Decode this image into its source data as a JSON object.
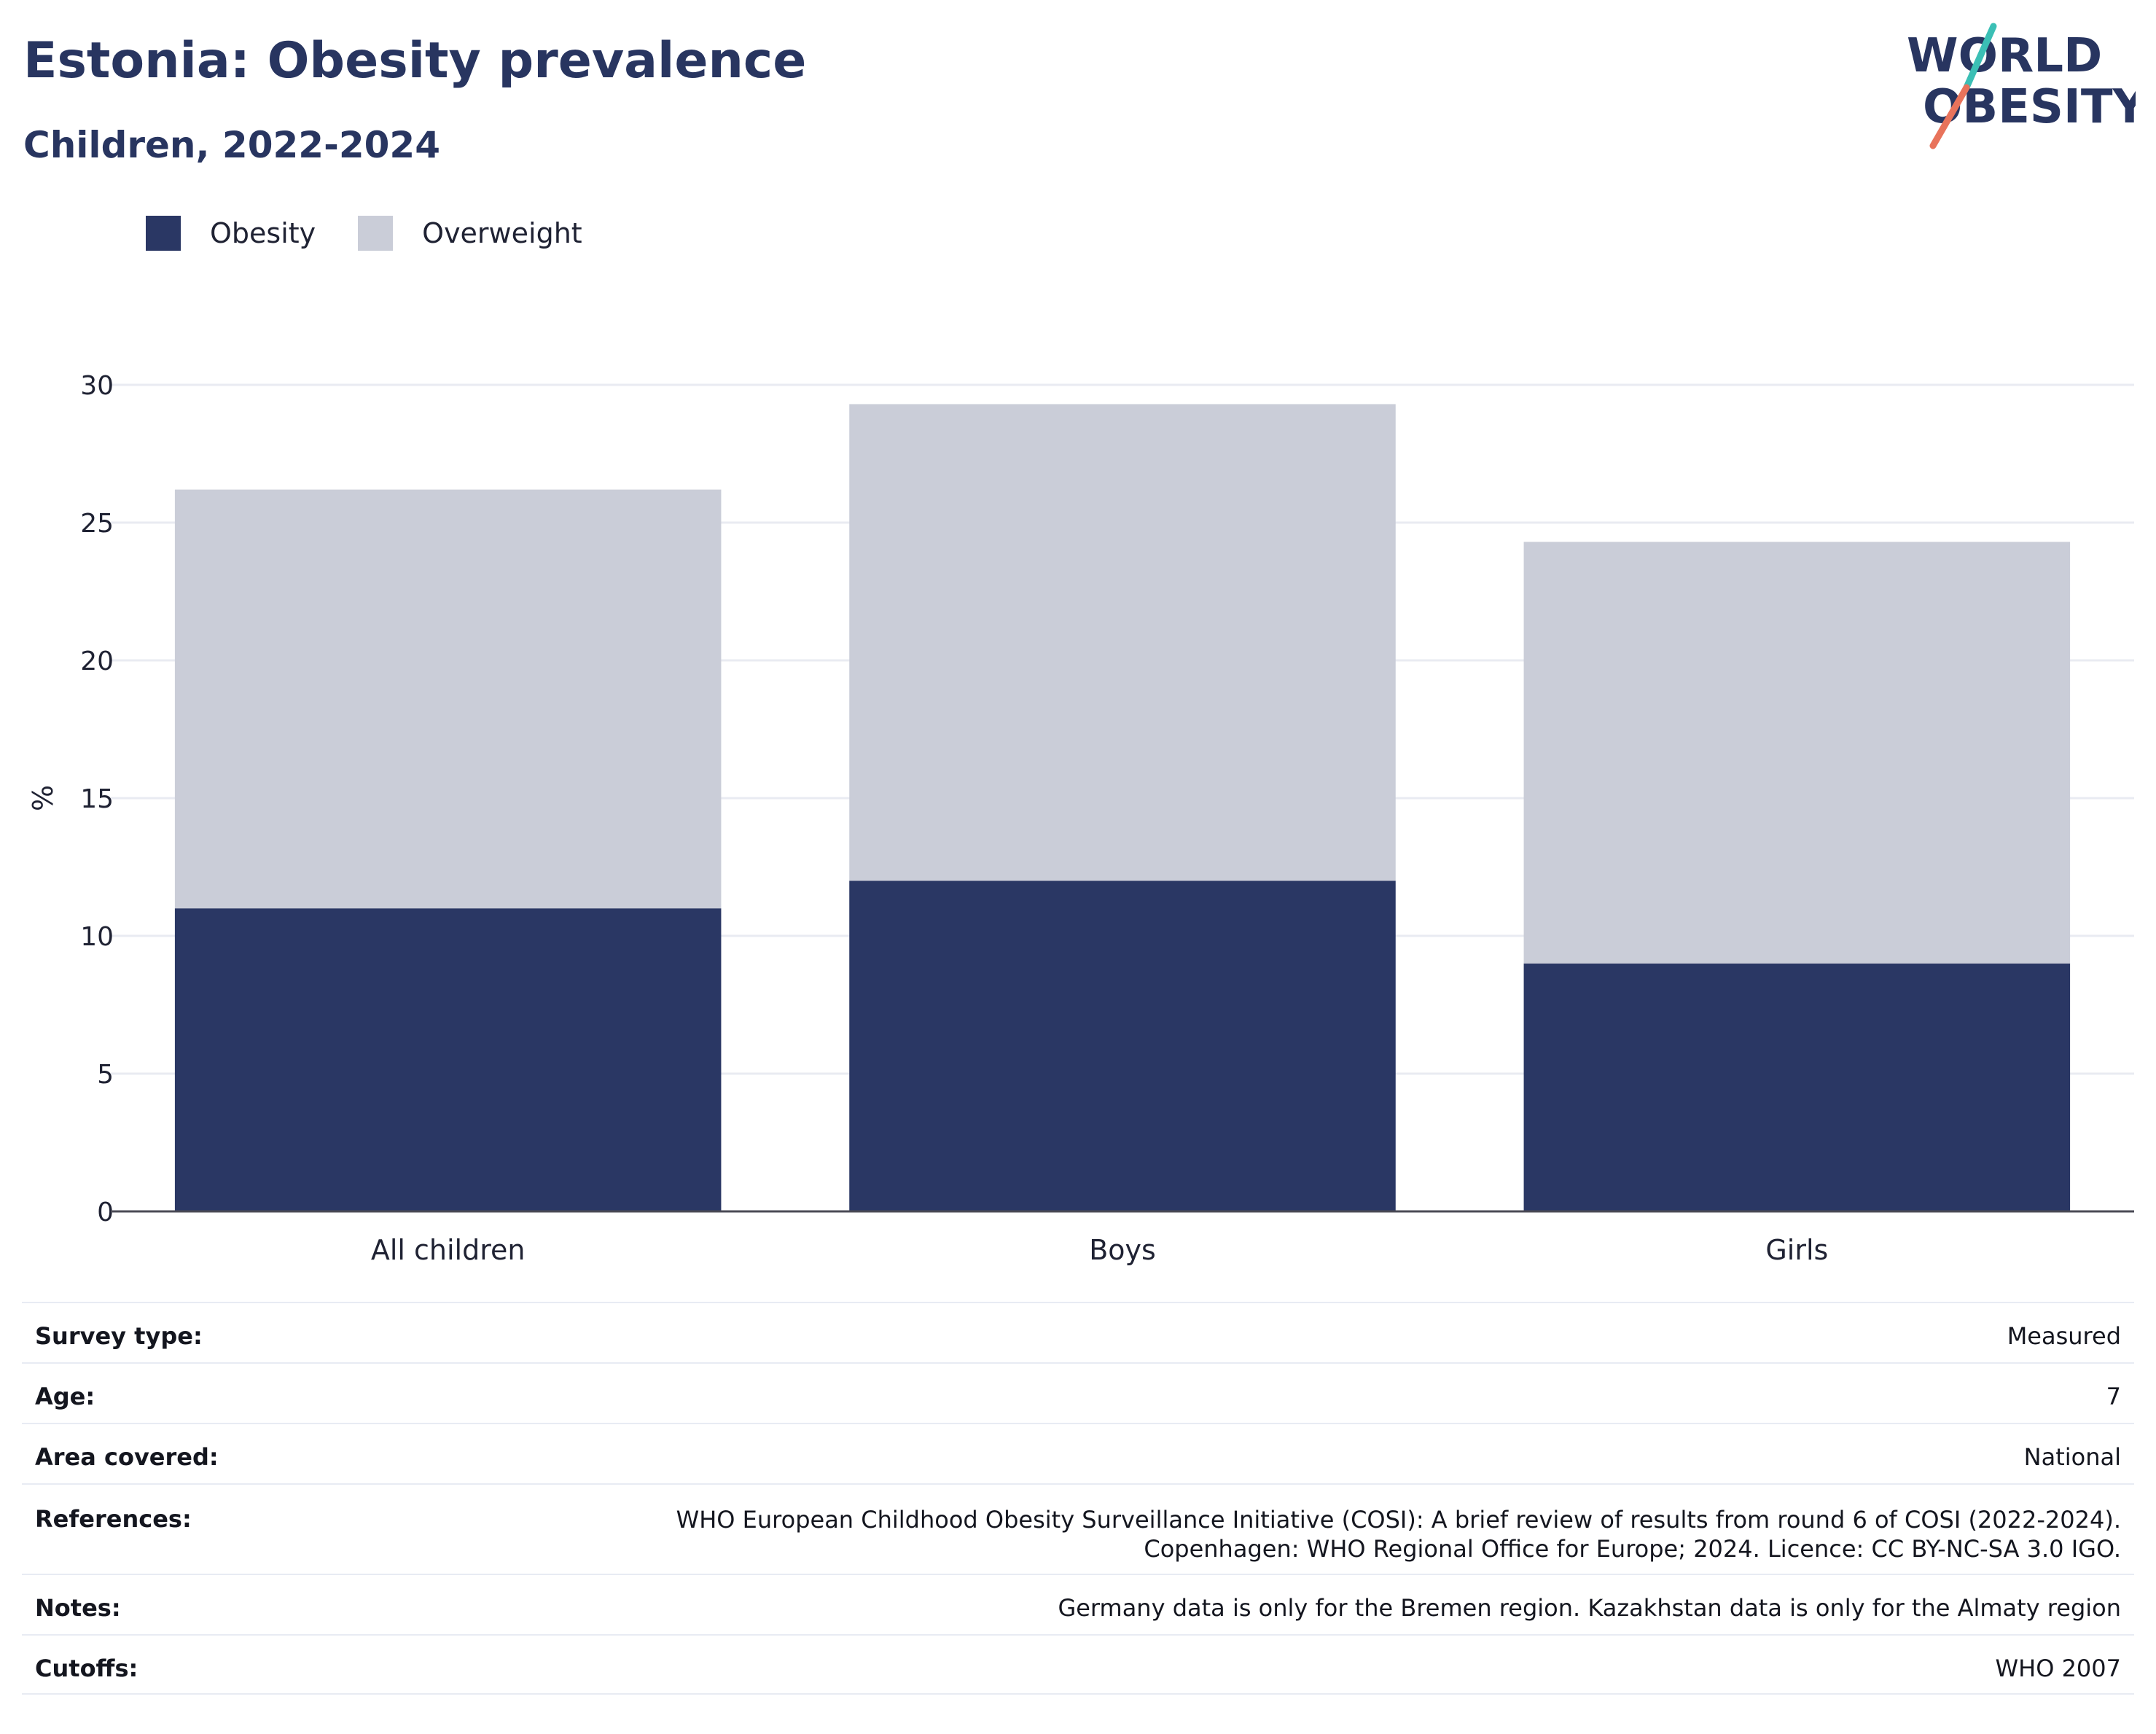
{
  "header": {
    "title": "Estonia: Obesity prevalence",
    "subtitle": "Children, 2022-2024"
  },
  "logo": {
    "line1": "WORLD",
    "line2": "OBESITY",
    "colors": {
      "text": "#283560",
      "slash_top": "#3bbfb5",
      "slash_bottom": "#e8735b"
    }
  },
  "colors": {
    "obesity": "#2a3764",
    "overweight": "#cacdd8",
    "grid": "#e9ebf2",
    "axis": "#4a4a55"
  },
  "chart_data": {
    "type": "bar",
    "stacked": true,
    "categories": [
      "All children",
      "Boys",
      "Girls"
    ],
    "series": [
      {
        "name": "Obesity",
        "values": [
          11,
          12,
          9
        ],
        "color": "#2a3764"
      },
      {
        "name": "Overweight",
        "values": [
          15.2,
          17.3,
          15.3
        ],
        "color": "#cacdd8"
      }
    ],
    "totals": [
      26.2,
      29.3,
      24.3
    ],
    "ylabel": "%",
    "ylim": [
      0,
      30
    ],
    "yticks": [
      0,
      5,
      10,
      15,
      20,
      25,
      30
    ],
    "grid": true,
    "legend_position": "top-left"
  },
  "details": [
    {
      "label": "Survey type:",
      "value": [
        "Measured"
      ]
    },
    {
      "label": "Age:",
      "value": [
        "7"
      ]
    },
    {
      "label": "Area covered:",
      "value": [
        "National"
      ]
    },
    {
      "label": "References:",
      "value": [
        "WHO European Childhood Obesity Surveillance Initiative (COSI): A brief review of results from round 6 of COSI (2022-2024).",
        "Copenhagen: WHO Regional Office for Europe; 2024. Licence: CC BY-NC-SA 3.0 IGO."
      ]
    },
    {
      "label": "Notes:",
      "value": [
        "Germany data is only for the Bremen region. Kazakhstan data is only for the Almaty region"
      ]
    },
    {
      "label": "Cutoffs:",
      "value": [
        "WHO 2007"
      ]
    }
  ]
}
